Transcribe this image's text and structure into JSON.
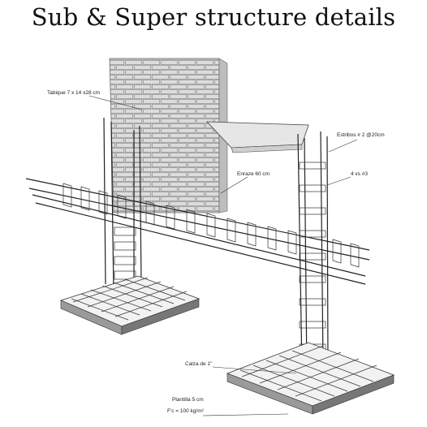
{
  "title": "Sub & Super structure details",
  "labels": {
    "tabique": "Tabique 7 x 14 x28 cm",
    "estribos": "Estribos # 2 @20cm",
    "enraze": "Enraze 60 cm",
    "varillas": "4 vs #3",
    "calza": "Calza de 1\"",
    "plantilla": "Plantilla  5 cm",
    "fc": "F'c = 100 kg/m²"
  }
}
